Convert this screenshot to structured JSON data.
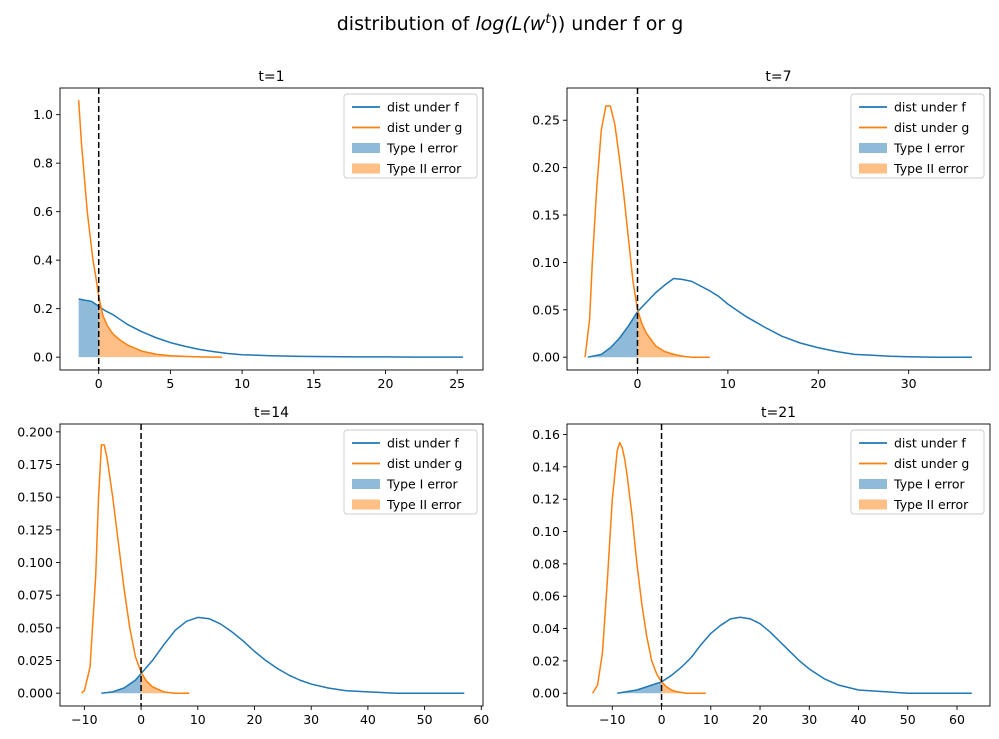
{
  "figure": {
    "title_prefix": "distribution of ",
    "title_math_base": "log(L(w",
    "title_math_sup": "t",
    "title_math_close": "))",
    "title_suffix": " under f or g"
  },
  "colors": {
    "f": "#1f77b4",
    "g": "#ff7f0e",
    "type1_fill": "#1f77b4",
    "type2_fill": "#ff7f0e",
    "threshold": "#000000"
  },
  "legend": {
    "f": "dist under f",
    "g": "dist under g",
    "type1": "Type I error",
    "type2": "Type II error"
  },
  "chart_data": [
    {
      "type": "line",
      "title": "t=1",
      "threshold_x": 0,
      "xlim": [
        -2.7,
        26.8
      ],
      "ylim": [
        -0.053,
        1.11
      ],
      "xticks": [
        0,
        5,
        10,
        15,
        20,
        25
      ],
      "yticks": [
        0.0,
        0.2,
        0.4,
        0.6,
        0.8,
        1.0
      ],
      "yticklabels": [
        "0.0",
        "0.2",
        "0.4",
        "0.6",
        "0.8",
        "1.0"
      ],
      "series": [
        {
          "name": "dist under f",
          "x": [
            -1.4,
            -1.0,
            -0.5,
            0,
            0.5,
            1,
            1.5,
            2,
            3,
            4,
            5,
            6,
            7,
            8,
            9,
            10,
            12,
            14,
            16,
            18,
            20,
            22,
            24,
            25.4
          ],
          "y": [
            0.24,
            0.235,
            0.23,
            0.21,
            0.19,
            0.175,
            0.155,
            0.135,
            0.105,
            0.08,
            0.06,
            0.045,
            0.032,
            0.023,
            0.015,
            0.01,
            0.006,
            0.003,
            0.002,
            0.001,
            0.001,
            0.0,
            0.0,
            0.0
          ]
        },
        {
          "name": "dist under g",
          "x": [
            -1.4,
            -1.2,
            -1.0,
            -0.8,
            -0.6,
            -0.4,
            -0.2,
            0,
            0.3,
            0.6,
            1,
            1.5,
            2,
            3,
            4,
            5,
            6,
            7,
            8,
            8.6
          ],
          "y": [
            1.06,
            0.88,
            0.74,
            0.6,
            0.5,
            0.4,
            0.33,
            0.25,
            0.17,
            0.13,
            0.095,
            0.07,
            0.05,
            0.025,
            0.012,
            0.006,
            0.003,
            0.001,
            0.0,
            0.0
          ]
        }
      ]
    },
    {
      "type": "line",
      "title": "t=7",
      "threshold_x": 0,
      "xlim": [
        -7.8,
        39.0
      ],
      "ylim": [
        -0.0135,
        0.284
      ],
      "xticks": [
        0,
        10,
        20,
        30
      ],
      "yticks": [
        0.0,
        0.05,
        0.1,
        0.15,
        0.2,
        0.25
      ],
      "yticklabels": [
        "0.00",
        "0.05",
        "0.10",
        "0.15",
        "0.20",
        "0.25"
      ],
      "series": [
        {
          "name": "dist under f",
          "x": [
            -5.5,
            -4,
            -3,
            -2,
            -1,
            0,
            1,
            2,
            3,
            4,
            5,
            6,
            7,
            8,
            9,
            10,
            12,
            14,
            16,
            18,
            20,
            22,
            24,
            26,
            28,
            30,
            33,
            37
          ],
          "y": [
            0.0,
            0.003,
            0.01,
            0.02,
            0.033,
            0.048,
            0.058,
            0.068,
            0.076,
            0.083,
            0.082,
            0.08,
            0.075,
            0.07,
            0.064,
            0.056,
            0.043,
            0.032,
            0.022,
            0.015,
            0.01,
            0.006,
            0.003,
            0.002,
            0.001,
            0.0005,
            0.0,
            0.0
          ]
        },
        {
          "name": "dist under g",
          "x": [
            -5.8,
            -5.3,
            -5,
            -4.5,
            -4,
            -3.5,
            -3,
            -2.5,
            -2,
            -1.5,
            -1,
            -0.5,
            0,
            0.5,
            1,
            2,
            3,
            4,
            5,
            6,
            7,
            8
          ],
          "y": [
            0.0,
            0.04,
            0.1,
            0.18,
            0.24,
            0.265,
            0.265,
            0.245,
            0.21,
            0.17,
            0.125,
            0.08,
            0.05,
            0.035,
            0.025,
            0.012,
            0.006,
            0.003,
            0.001,
            0.0,
            0.0,
            0.0
          ]
        }
      ]
    },
    {
      "type": "line",
      "title": "t=14",
      "threshold_x": 0,
      "xlim": [
        -14.3,
        60.3
      ],
      "ylim": [
        -0.0098,
        0.206
      ],
      "xticks": [
        -10,
        0,
        10,
        20,
        30,
        40,
        50,
        60
      ],
      "yticks": [
        0.0,
        0.025,
        0.05,
        0.075,
        0.1,
        0.125,
        0.15,
        0.175,
        0.2
      ],
      "yticklabels": [
        "0.000",
        "0.025",
        "0.050",
        "0.075",
        "0.100",
        "0.125",
        "0.150",
        "0.175",
        "0.200"
      ],
      "series": [
        {
          "name": "dist under f",
          "x": [
            -7,
            -5,
            -3,
            -1,
            0,
            2,
            4,
            6,
            8,
            10,
            12,
            14,
            16,
            18,
            20,
            22,
            24,
            26,
            28,
            30,
            33,
            36,
            40,
            45,
            50,
            57
          ],
          "y": [
            0.0,
            0.001,
            0.004,
            0.01,
            0.015,
            0.025,
            0.037,
            0.048,
            0.055,
            0.058,
            0.057,
            0.053,
            0.047,
            0.04,
            0.032,
            0.025,
            0.019,
            0.014,
            0.01,
            0.007,
            0.004,
            0.002,
            0.001,
            0.0,
            0.0,
            0.0
          ]
        },
        {
          "name": "dist under g",
          "x": [
            -10.5,
            -10,
            -9,
            -8,
            -7.5,
            -7,
            -6.5,
            -6,
            -5,
            -4,
            -3,
            -2,
            -1,
            0,
            1,
            2,
            3,
            4,
            6,
            8.5
          ],
          "y": [
            0.0,
            0.002,
            0.02,
            0.09,
            0.15,
            0.19,
            0.19,
            0.18,
            0.15,
            0.115,
            0.08,
            0.05,
            0.028,
            0.016,
            0.009,
            0.005,
            0.003,
            0.001,
            0.0,
            0.0
          ]
        }
      ]
    },
    {
      "type": "line",
      "title": "t=21",
      "threshold_x": 0,
      "xlim": [
        -19.2,
        66.7
      ],
      "ylim": [
        -0.0079,
        0.1665
      ],
      "xticks": [
        -10,
        0,
        10,
        20,
        30,
        40,
        50,
        60
      ],
      "yticks": [
        0.0,
        0.02,
        0.04,
        0.06,
        0.08,
        0.1,
        0.12,
        0.14,
        0.16
      ],
      "yticklabels": [
        "0.00",
        "0.02",
        "0.04",
        "0.06",
        "0.08",
        "0.10",
        "0.12",
        "0.14",
        "0.16"
      ],
      "series": [
        {
          "name": "dist under f",
          "x": [
            -9,
            -7,
            -5,
            -3,
            -1,
            0,
            2,
            4,
            6,
            8,
            10,
            12,
            14,
            16,
            18,
            20,
            22,
            24,
            26,
            28,
            30,
            33,
            36,
            40,
            45,
            50,
            55,
            63
          ],
          "y": [
            0.0,
            0.001,
            0.002,
            0.004,
            0.006,
            0.007,
            0.011,
            0.016,
            0.022,
            0.03,
            0.037,
            0.042,
            0.046,
            0.047,
            0.046,
            0.043,
            0.038,
            0.032,
            0.026,
            0.02,
            0.015,
            0.009,
            0.005,
            0.002,
            0.001,
            0.0,
            0.0,
            0.0
          ]
        },
        {
          "name": "dist under g",
          "x": [
            -14,
            -13,
            -12,
            -11,
            -10,
            -9,
            -8.5,
            -8,
            -7.5,
            -7,
            -6,
            -5,
            -4,
            -3,
            -2,
            -1,
            0,
            1,
            2,
            3,
            5,
            9
          ],
          "y": [
            0.0,
            0.005,
            0.025,
            0.07,
            0.12,
            0.15,
            0.155,
            0.152,
            0.145,
            0.135,
            0.11,
            0.08,
            0.055,
            0.035,
            0.02,
            0.012,
            0.007,
            0.004,
            0.002,
            0.001,
            0.0,
            0.0
          ]
        }
      ]
    }
  ]
}
